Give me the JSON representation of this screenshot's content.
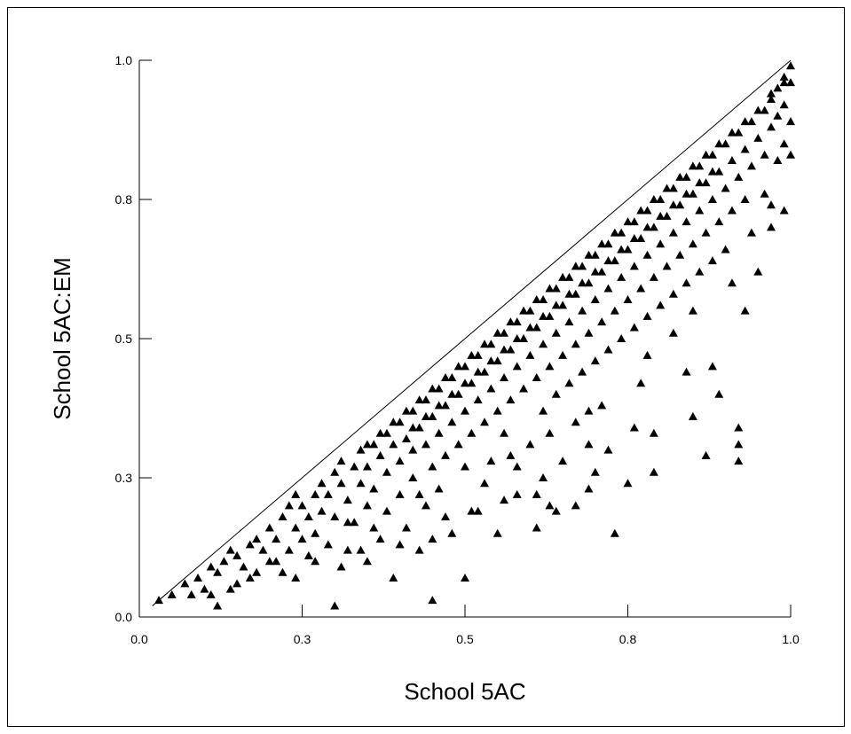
{
  "chart_data": {
    "type": "scatter",
    "title": "",
    "xlabel": "School 5AC",
    "ylabel": "School 5AC:EM",
    "xlim": [
      0,
      1
    ],
    "ylim": [
      0,
      1
    ],
    "xticks": [
      {
        "value": 0.0,
        "label": "0.0"
      },
      {
        "value": 0.25,
        "label": "0.3"
      },
      {
        "value": 0.5,
        "label": "0.5"
      },
      {
        "value": 0.75,
        "label": "0.8"
      },
      {
        "value": 1.0,
        "label": "1.0"
      }
    ],
    "yticks": [
      {
        "value": 0.0,
        "label": "0.0"
      },
      {
        "value": 0.25,
        "label": "0.3"
      },
      {
        "value": 0.5,
        "label": "0.5"
      },
      {
        "value": 0.75,
        "label": "0.8"
      },
      {
        "value": 1.0,
        "label": "1.0"
      }
    ],
    "reference_line": {
      "from": [
        0.02,
        0.02
      ],
      "to": [
        1.0,
        1.0
      ]
    },
    "marker": "triangle",
    "marker_color": "#000000",
    "grid": false,
    "points": [
      [
        0.03,
        0.03
      ],
      [
        0.05,
        0.04
      ],
      [
        0.07,
        0.06
      ],
      [
        0.08,
        0.04
      ],
      [
        0.09,
        0.07
      ],
      [
        0.1,
        0.05
      ],
      [
        0.11,
        0.09
      ],
      [
        0.12,
        0.02
      ],
      [
        0.12,
        0.08
      ],
      [
        0.13,
        0.1
      ],
      [
        0.14,
        0.12
      ],
      [
        0.15,
        0.06
      ],
      [
        0.15,
        0.11
      ],
      [
        0.16,
        0.09
      ],
      [
        0.17,
        0.13
      ],
      [
        0.18,
        0.08
      ],
      [
        0.18,
        0.14
      ],
      [
        0.19,
        0.12
      ],
      [
        0.2,
        0.1
      ],
      [
        0.2,
        0.16
      ],
      [
        0.21,
        0.14
      ],
      [
        0.22,
        0.08
      ],
      [
        0.22,
        0.18
      ],
      [
        0.23,
        0.12
      ],
      [
        0.23,
        0.2
      ],
      [
        0.24,
        0.16
      ],
      [
        0.24,
        0.22
      ],
      [
        0.25,
        0.14
      ],
      [
        0.25,
        0.2
      ],
      [
        0.26,
        0.11
      ],
      [
        0.26,
        0.18
      ],
      [
        0.27,
        0.22
      ],
      [
        0.27,
        0.15
      ],
      [
        0.28,
        0.24
      ],
      [
        0.28,
        0.19
      ],
      [
        0.29,
        0.13
      ],
      [
        0.29,
        0.22
      ],
      [
        0.3,
        0.26
      ],
      [
        0.3,
        0.02
      ],
      [
        0.3,
        0.18
      ],
      [
        0.31,
        0.24
      ],
      [
        0.31,
        0.28
      ],
      [
        0.32,
        0.12
      ],
      [
        0.32,
        0.21
      ],
      [
        0.33,
        0.27
      ],
      [
        0.33,
        0.17
      ],
      [
        0.34,
        0.3
      ],
      [
        0.34,
        0.24
      ],
      [
        0.35,
        0.1
      ],
      [
        0.35,
        0.2
      ],
      [
        0.35,
        0.27
      ],
      [
        0.36,
        0.31
      ],
      [
        0.36,
        0.23
      ],
      [
        0.37,
        0.14
      ],
      [
        0.37,
        0.29
      ],
      [
        0.38,
        0.33
      ],
      [
        0.38,
        0.26
      ],
      [
        0.38,
        0.19
      ],
      [
        0.39,
        0.31
      ],
      [
        0.39,
        0.07
      ],
      [
        0.4,
        0.35
      ],
      [
        0.4,
        0.28
      ],
      [
        0.4,
        0.22
      ],
      [
        0.41,
        0.32
      ],
      [
        0.41,
        0.16
      ],
      [
        0.42,
        0.37
      ],
      [
        0.42,
        0.3
      ],
      [
        0.42,
        0.25
      ],
      [
        0.43,
        0.34
      ],
      [
        0.43,
        0.12
      ],
      [
        0.44,
        0.39
      ],
      [
        0.44,
        0.31
      ],
      [
        0.44,
        0.2
      ],
      [
        0.45,
        0.36
      ],
      [
        0.45,
        0.27
      ],
      [
        0.45,
        0.03
      ],
      [
        0.46,
        0.41
      ],
      [
        0.46,
        0.33
      ],
      [
        0.46,
        0.23
      ],
      [
        0.47,
        0.38
      ],
      [
        0.47,
        0.29
      ],
      [
        0.48,
        0.43
      ],
      [
        0.48,
        0.35
      ],
      [
        0.48,
        0.15
      ],
      [
        0.49,
        0.4
      ],
      [
        0.49,
        0.31
      ],
      [
        0.5,
        0.45
      ],
      [
        0.5,
        0.37
      ],
      [
        0.5,
        0.27
      ],
      [
        0.5,
        0.07
      ],
      [
        0.51,
        0.42
      ],
      [
        0.51,
        0.33
      ],
      [
        0.52,
        0.47
      ],
      [
        0.52,
        0.39
      ],
      [
        0.52,
        0.19
      ],
      [
        0.53,
        0.44
      ],
      [
        0.53,
        0.35
      ],
      [
        0.54,
        0.49
      ],
      [
        0.54,
        0.41
      ],
      [
        0.54,
        0.28
      ],
      [
        0.55,
        0.46
      ],
      [
        0.55,
        0.37
      ],
      [
        0.55,
        0.15
      ],
      [
        0.56,
        0.51
      ],
      [
        0.56,
        0.43
      ],
      [
        0.56,
        0.33
      ],
      [
        0.57,
        0.48
      ],
      [
        0.57,
        0.39
      ],
      [
        0.58,
        0.53
      ],
      [
        0.58,
        0.45
      ],
      [
        0.58,
        0.22
      ],
      [
        0.59,
        0.5
      ],
      [
        0.59,
        0.41
      ],
      [
        0.6,
        0.55
      ],
      [
        0.6,
        0.47
      ],
      [
        0.6,
        0.31
      ],
      [
        0.61,
        0.52
      ],
      [
        0.61,
        0.43
      ],
      [
        0.61,
        0.16
      ],
      [
        0.62,
        0.57
      ],
      [
        0.62,
        0.49
      ],
      [
        0.62,
        0.37
      ],
      [
        0.63,
        0.54
      ],
      [
        0.63,
        0.45
      ],
      [
        0.63,
        0.2
      ],
      [
        0.64,
        0.59
      ],
      [
        0.64,
        0.51
      ],
      [
        0.64,
        0.4
      ],
      [
        0.65,
        0.56
      ],
      [
        0.65,
        0.47
      ],
      [
        0.65,
        0.28
      ],
      [
        0.66,
        0.61
      ],
      [
        0.66,
        0.53
      ],
      [
        0.66,
        0.42
      ],
      [
        0.67,
        0.58
      ],
      [
        0.67,
        0.49
      ],
      [
        0.67,
        0.35
      ],
      [
        0.68,
        0.63
      ],
      [
        0.68,
        0.55
      ],
      [
        0.68,
        0.44
      ],
      [
        0.69,
        0.6
      ],
      [
        0.69,
        0.51
      ],
      [
        0.69,
        0.31
      ],
      [
        0.7,
        0.65
      ],
      [
        0.7,
        0.57
      ],
      [
        0.7,
        0.46
      ],
      [
        0.71,
        0.62
      ],
      [
        0.71,
        0.53
      ],
      [
        0.71,
        0.38
      ],
      [
        0.72,
        0.67
      ],
      [
        0.72,
        0.59
      ],
      [
        0.72,
        0.48
      ],
      [
        0.73,
        0.64
      ],
      [
        0.73,
        0.55
      ],
      [
        0.73,
        0.15
      ],
      [
        0.74,
        0.69
      ],
      [
        0.74,
        0.61
      ],
      [
        0.74,
        0.5
      ],
      [
        0.75,
        0.66
      ],
      [
        0.75,
        0.57
      ],
      [
        0.75,
        0.24
      ],
      [
        0.76,
        0.71
      ],
      [
        0.76,
        0.63
      ],
      [
        0.76,
        0.52
      ],
      [
        0.77,
        0.68
      ],
      [
        0.77,
        0.59
      ],
      [
        0.77,
        0.42
      ],
      [
        0.78,
        0.73
      ],
      [
        0.78,
        0.65
      ],
      [
        0.78,
        0.54
      ],
      [
        0.79,
        0.7
      ],
      [
        0.79,
        0.61
      ],
      [
        0.79,
        0.33
      ],
      [
        0.8,
        0.75
      ],
      [
        0.8,
        0.67
      ],
      [
        0.8,
        0.56
      ],
      [
        0.81,
        0.72
      ],
      [
        0.81,
        0.63
      ],
      [
        0.82,
        0.77
      ],
      [
        0.82,
        0.69
      ],
      [
        0.82,
        0.58
      ],
      [
        0.83,
        0.74
      ],
      [
        0.83,
        0.65
      ],
      [
        0.84,
        0.79
      ],
      [
        0.84,
        0.71
      ],
      [
        0.84,
        0.6
      ],
      [
        0.85,
        0.76
      ],
      [
        0.85,
        0.67
      ],
      [
        0.86,
        0.81
      ],
      [
        0.86,
        0.73
      ],
      [
        0.86,
        0.62
      ],
      [
        0.87,
        0.78
      ],
      [
        0.87,
        0.69
      ],
      [
        0.87,
        0.29
      ],
      [
        0.88,
        0.83
      ],
      [
        0.88,
        0.75
      ],
      [
        0.88,
        0.64
      ],
      [
        0.89,
        0.8
      ],
      [
        0.89,
        0.71
      ],
      [
        0.89,
        0.4
      ],
      [
        0.9,
        0.85
      ],
      [
        0.9,
        0.77
      ],
      [
        0.9,
        0.66
      ],
      [
        0.91,
        0.82
      ],
      [
        0.91,
        0.73
      ],
      [
        0.92,
        0.87
      ],
      [
        0.92,
        0.79
      ],
      [
        0.92,
        0.34
      ],
      [
        0.93,
        0.84
      ],
      [
        0.93,
        0.75
      ],
      [
        0.94,
        0.89
      ],
      [
        0.94,
        0.81
      ],
      [
        0.94,
        0.69
      ],
      [
        0.95,
        0.86
      ],
      [
        0.95,
        0.62
      ],
      [
        0.96,
        0.91
      ],
      [
        0.96,
        0.83
      ],
      [
        0.96,
        0.76
      ],
      [
        0.97,
        0.93
      ],
      [
        0.97,
        0.88
      ],
      [
        0.98,
        0.95
      ],
      [
        0.98,
        0.9
      ],
      [
        0.98,
        0.82
      ],
      [
        0.99,
        0.97
      ],
      [
        0.99,
        0.92
      ],
      [
        0.99,
        0.85
      ],
      [
        1.0,
        0.99
      ],
      [
        1.0,
        0.96
      ],
      [
        1.0,
        0.89
      ],
      [
        1.0,
        0.83
      ],
      [
        0.35,
        0.31
      ],
      [
        0.37,
        0.33
      ],
      [
        0.39,
        0.35
      ],
      [
        0.41,
        0.37
      ],
      [
        0.43,
        0.39
      ],
      [
        0.45,
        0.41
      ],
      [
        0.47,
        0.43
      ],
      [
        0.49,
        0.45
      ],
      [
        0.51,
        0.47
      ],
      [
        0.53,
        0.49
      ],
      [
        0.55,
        0.51
      ],
      [
        0.57,
        0.53
      ],
      [
        0.59,
        0.55
      ],
      [
        0.61,
        0.57
      ],
      [
        0.63,
        0.59
      ],
      [
        0.65,
        0.61
      ],
      [
        0.67,
        0.63
      ],
      [
        0.69,
        0.65
      ],
      [
        0.71,
        0.67
      ],
      [
        0.73,
        0.69
      ],
      [
        0.75,
        0.71
      ],
      [
        0.77,
        0.73
      ],
      [
        0.79,
        0.75
      ],
      [
        0.81,
        0.77
      ],
      [
        0.83,
        0.79
      ],
      [
        0.85,
        0.81
      ],
      [
        0.87,
        0.83
      ],
      [
        0.89,
        0.85
      ],
      [
        0.91,
        0.87
      ],
      [
        0.93,
        0.89
      ],
      [
        0.95,
        0.91
      ],
      [
        0.97,
        0.94
      ],
      [
        0.99,
        0.96
      ],
      [
        0.42,
        0.34
      ],
      [
        0.44,
        0.36
      ],
      [
        0.46,
        0.38
      ],
      [
        0.48,
        0.4
      ],
      [
        0.5,
        0.42
      ],
      [
        0.52,
        0.44
      ],
      [
        0.54,
        0.46
      ],
      [
        0.56,
        0.48
      ],
      [
        0.58,
        0.5
      ],
      [
        0.6,
        0.52
      ],
      [
        0.62,
        0.54
      ],
      [
        0.64,
        0.56
      ],
      [
        0.66,
        0.58
      ],
      [
        0.68,
        0.6
      ],
      [
        0.7,
        0.62
      ],
      [
        0.72,
        0.64
      ],
      [
        0.74,
        0.66
      ],
      [
        0.76,
        0.68
      ],
      [
        0.78,
        0.7
      ],
      [
        0.8,
        0.72
      ],
      [
        0.82,
        0.74
      ],
      [
        0.84,
        0.76
      ],
      [
        0.86,
        0.78
      ],
      [
        0.88,
        0.8
      ],
      [
        0.57,
        0.29
      ],
      [
        0.63,
        0.33
      ],
      [
        0.69,
        0.37
      ],
      [
        0.78,
        0.47
      ],
      [
        0.82,
        0.51
      ],
      [
        0.85,
        0.55
      ],
      [
        0.91,
        0.6
      ],
      [
        0.97,
        0.74
      ],
      [
        0.93,
        0.55
      ],
      [
        0.88,
        0.45
      ],
      [
        0.85,
        0.36
      ],
      [
        0.79,
        0.26
      ],
      [
        0.67,
        0.2
      ],
      [
        0.62,
        0.25
      ],
      [
        0.58,
        0.27
      ],
      [
        0.53,
        0.24
      ],
      [
        0.47,
        0.18
      ],
      [
        0.43,
        0.22
      ],
      [
        0.36,
        0.16
      ],
      [
        0.32,
        0.17
      ],
      [
        0.27,
        0.1
      ],
      [
        0.24,
        0.07
      ],
      [
        0.21,
        0.1
      ],
      [
        0.17,
        0.07
      ],
      [
        0.14,
        0.05
      ],
      [
        0.11,
        0.04
      ],
      [
        0.92,
        0.31
      ],
      [
        0.92,
        0.28
      ],
      [
        0.97,
        0.7
      ],
      [
        0.99,
        0.73
      ],
      [
        0.84,
        0.44
      ],
      [
        0.76,
        0.34
      ],
      [
        0.72,
        0.3
      ],
      [
        0.69,
        0.23
      ],
      [
        0.64,
        0.19
      ],
      [
        0.7,
        0.26
      ],
      [
        0.61,
        0.22
      ],
      [
        0.56,
        0.21
      ],
      [
        0.51,
        0.19
      ],
      [
        0.45,
        0.14
      ],
      [
        0.4,
        0.13
      ],
      [
        0.34,
        0.12
      ],
      [
        0.31,
        0.09
      ]
    ]
  }
}
